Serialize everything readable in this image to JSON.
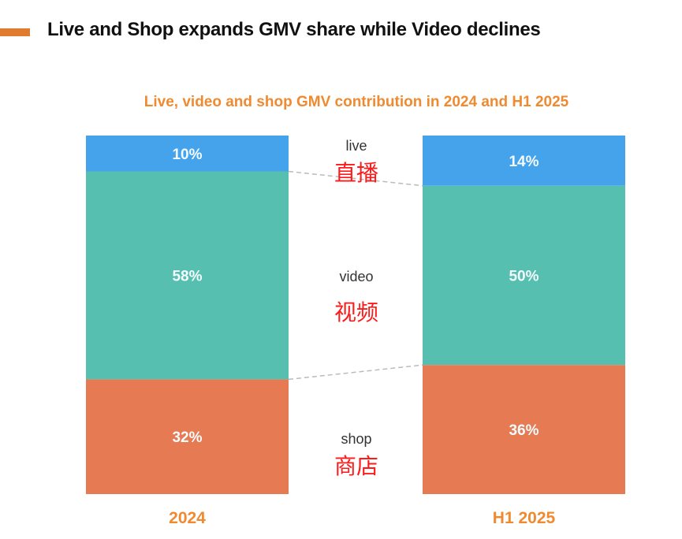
{
  "headline": "Live and Shop expands GMV share while Video declines",
  "colors": {
    "accent": "#e07b30",
    "live": "#45a3ec",
    "video": "#56bfb0",
    "shop": "#e67a52",
    "title": "#f08a30",
    "cn_label": "#ff1a1a"
  },
  "chart_data": {
    "type": "bar",
    "stacked": true,
    "percent": true,
    "title": "Live, video and shop GMV contribution in 2024 and H1 2025",
    "categories": [
      "2024",
      "H1 2025"
    ],
    "series": [
      {
        "name": "live",
        "name_cn": "直播",
        "values": [
          10,
          14
        ],
        "labels": [
          "10%",
          "14%"
        ]
      },
      {
        "name": "video",
        "name_cn": "视频",
        "values": [
          58,
          50
        ],
        "labels": [
          "58%",
          "50%"
        ]
      },
      {
        "name": "shop",
        "name_cn": "商店",
        "values": [
          32,
          36
        ],
        "labels": [
          "32%",
          "36%"
        ]
      }
    ],
    "ylim": [
      0,
      100
    ],
    "grid": false,
    "legend": "center-between-bars"
  }
}
